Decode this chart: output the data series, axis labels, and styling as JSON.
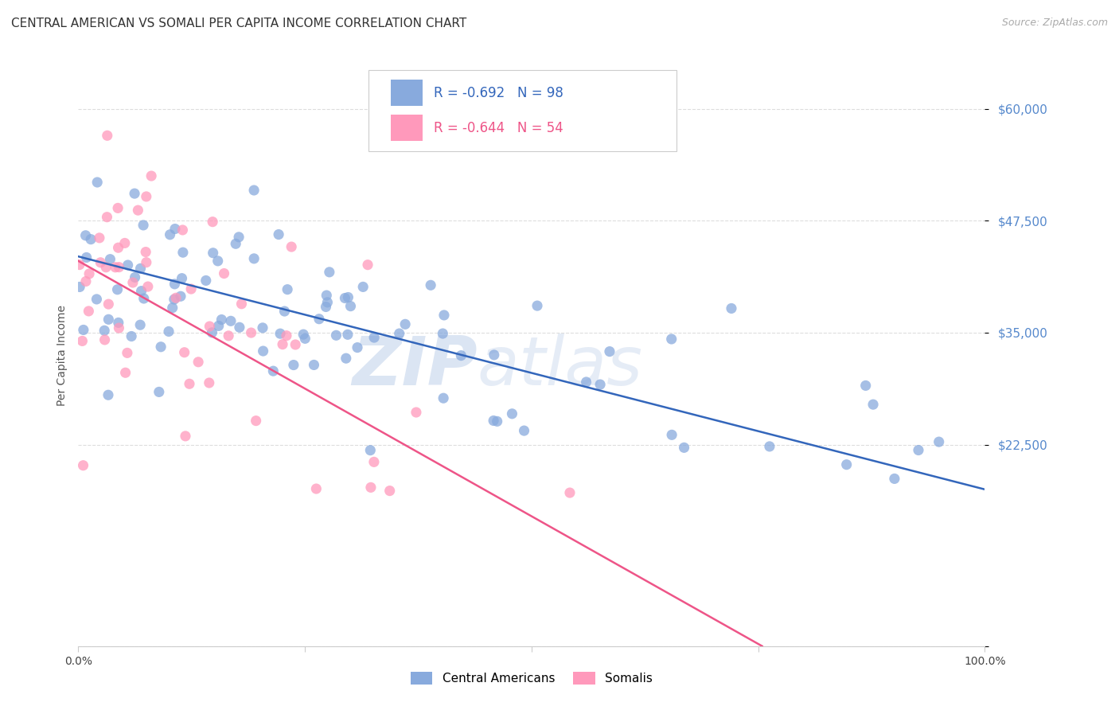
{
  "title": "CENTRAL AMERICAN VS SOMALI PER CAPITA INCOME CORRELATION CHART",
  "source": "Source: ZipAtlas.com",
  "ylabel": "Per Capita Income",
  "xlim": [
    0,
    1
  ],
  "ylim": [
    0,
    65000
  ],
  "yticks": [
    0,
    22500,
    35000,
    47500,
    60000
  ],
  "ytick_labels": [
    "",
    "$22,500",
    "$35,000",
    "$47,500",
    "$60,000"
  ],
  "blue_color": "#88AADD",
  "pink_color": "#FF99BB",
  "blue_line_color": "#3366BB",
  "pink_line_color": "#EE5588",
  "legend_blue_r": "-0.692",
  "legend_blue_n": "98",
  "legend_pink_r": "-0.644",
  "legend_pink_n": "54",
  "blue_intercept": 43500,
  "blue_slope": -26000,
  "pink_intercept": 43000,
  "pink_slope": -57000,
  "watermark_zip": "ZIP",
  "watermark_atlas": "atlas",
  "watermark_color": "#CCDAEE",
  "background_color": "#FFFFFF",
  "title_fontsize": 11,
  "axis_label_color": "#5588CC",
  "grid_color": "#DDDDDD",
  "source_color": "#AAAAAA"
}
